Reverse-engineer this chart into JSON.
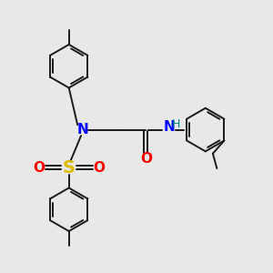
{
  "bg_color": "#e8e8e8",
  "bond_color": "#1a1a1a",
  "N_color": "#0000ff",
  "S_color": "#ddbb00",
  "O_color": "#ff0000",
  "NH_color": "#008080",
  "figsize": [
    3.0,
    3.0
  ],
  "dpi": 100,
  "lw": 1.4,
  "xlim": [
    0,
    10
  ],
  "ylim": [
    0,
    10
  ]
}
